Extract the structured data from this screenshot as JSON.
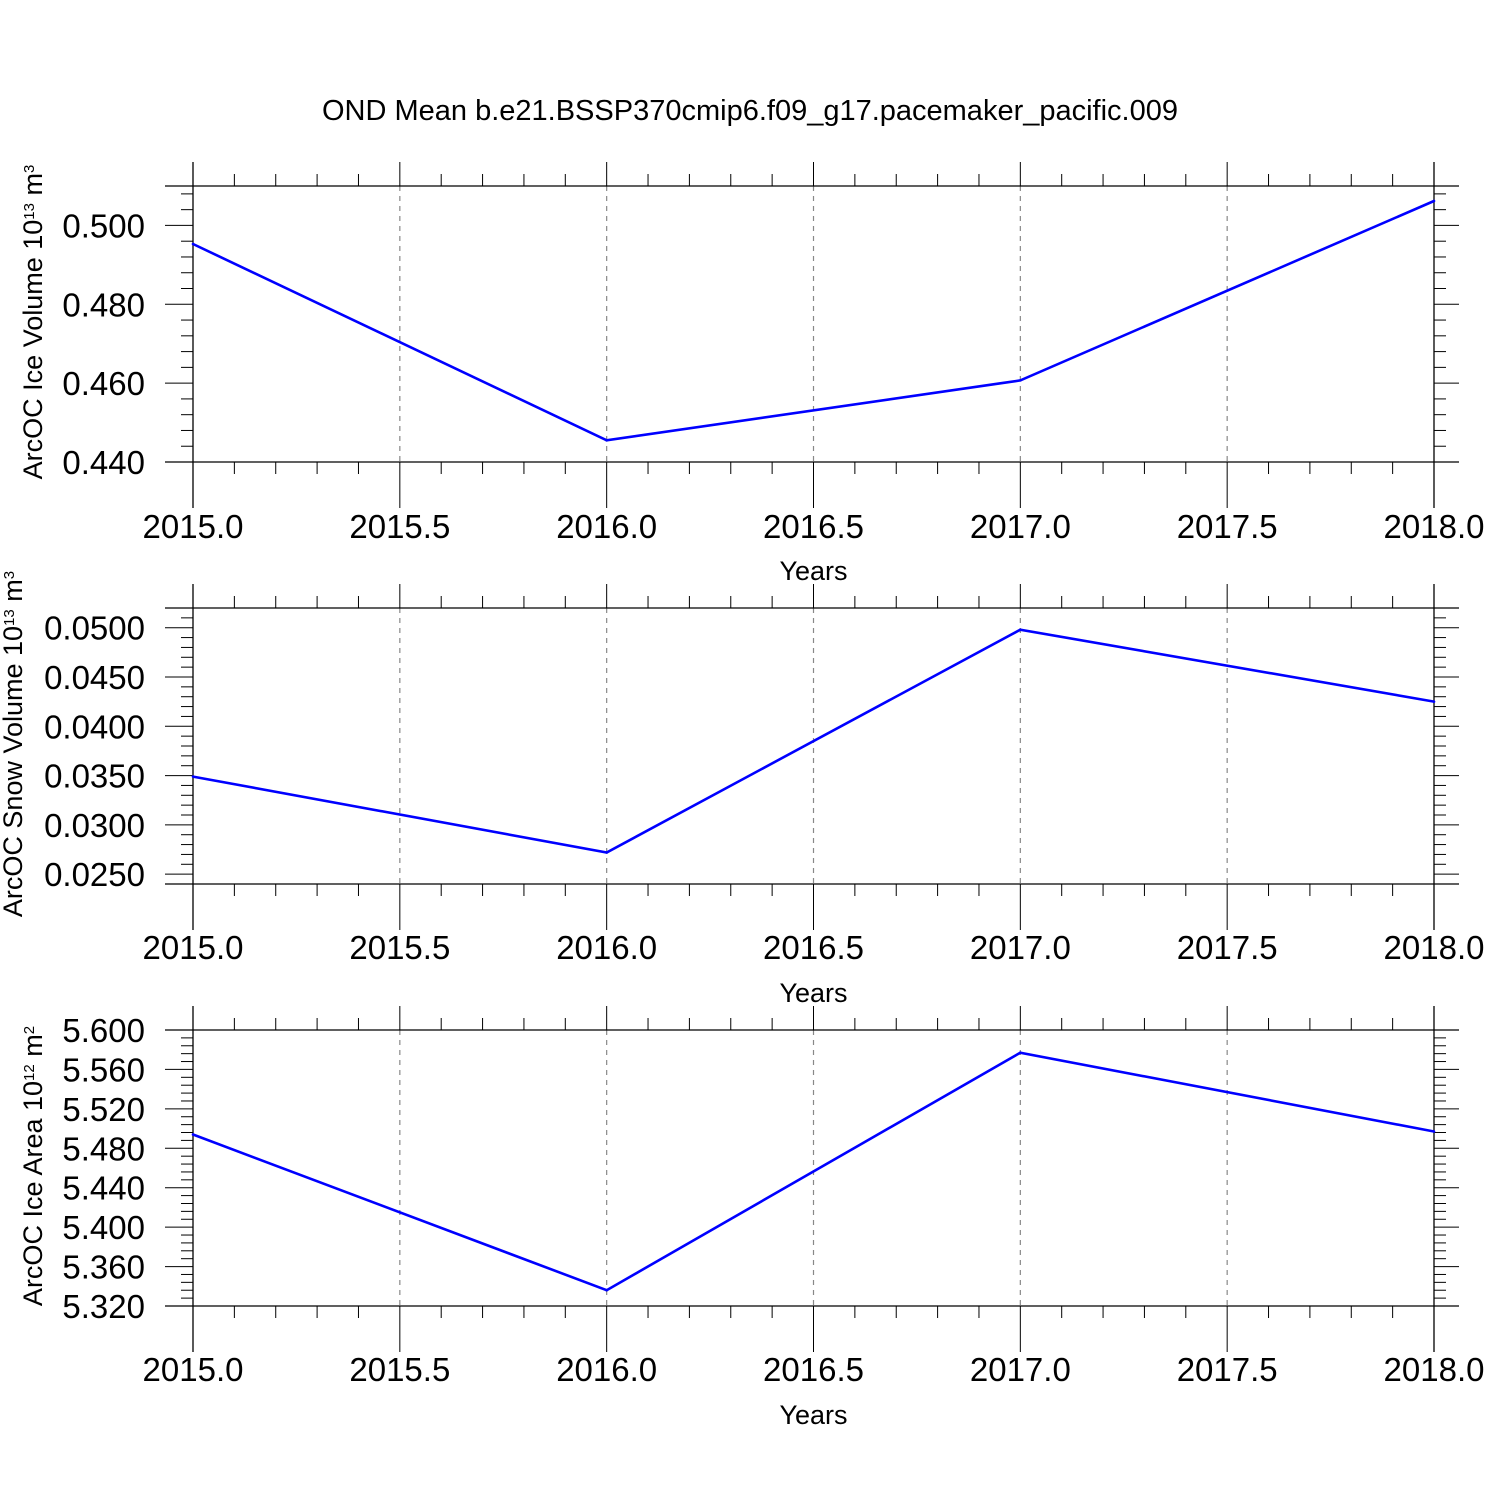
{
  "figure": {
    "title": "OND Mean b.e21.BSSP370cmip6.f09_g17.pacemaker_pacific.009"
  },
  "chart_data": [
    {
      "type": "line",
      "x": [
        2015.0,
        2016.0,
        2017.0,
        2018.0
      ],
      "series": [
        {
          "values": [
            0.4953,
            0.4455,
            0.4607,
            0.5062
          ],
          "color": "#0000ff"
        }
      ],
      "xlabel": "Years",
      "ylabel": {
        "text": "ArcOC Ice Volume 10",
        "exponent": "13",
        "unit": "m",
        "unit_exponent": "3"
      },
      "xlim": [
        2015.0,
        2018.0
      ],
      "ylim": [
        0.44,
        0.51
      ],
      "x_ticks": [
        "2015.0",
        "2015.5",
        "2016.0",
        "2016.5",
        "2017.0",
        "2017.5",
        "2018.0"
      ],
      "y_ticks": [
        "0.440",
        "0.460",
        "0.480",
        "0.500"
      ],
      "grid": "vertical dashed at labeled x ticks"
    },
    {
      "type": "line",
      "x": [
        2015.0,
        2016.0,
        2017.0,
        2018.0
      ],
      "series": [
        {
          "values": [
            0.0349,
            0.0272,
            0.0498,
            0.0425
          ],
          "color": "#0000ff"
        }
      ],
      "xlabel": "Years",
      "ylabel": {
        "text": "ArcOC Snow Volume 10",
        "exponent": "13",
        "unit": "m",
        "unit_exponent": "3"
      },
      "xlim": [
        2015.0,
        2018.0
      ],
      "ylim": [
        0.024,
        0.052
      ],
      "x_ticks": [
        "2015.0",
        "2015.5",
        "2016.0",
        "2016.5",
        "2017.0",
        "2017.5",
        "2018.0"
      ],
      "y_ticks": [
        "0.0250",
        "0.0300",
        "0.0350",
        "0.0400",
        "0.0450",
        "0.0500"
      ],
      "grid": "vertical dashed at labeled x ticks"
    },
    {
      "type": "line",
      "x": [
        2015.0,
        2016.0,
        2017.0,
        2018.0
      ],
      "series": [
        {
          "values": [
            5.494,
            5.336,
            5.577,
            5.497
          ],
          "color": "#0000ff"
        }
      ],
      "xlabel": "Years",
      "ylabel": {
        "text": "ArcOC Ice Area 10",
        "exponent": "12",
        "unit": "m",
        "unit_exponent": "2"
      },
      "xlim": [
        2015.0,
        2018.0
      ],
      "ylim": [
        5.32,
        5.6
      ],
      "x_ticks": [
        "2015.0",
        "2015.5",
        "2016.0",
        "2016.5",
        "2017.0",
        "2017.5",
        "2018.0"
      ],
      "y_ticks": [
        "5.320",
        "5.360",
        "5.400",
        "5.440",
        "5.480",
        "5.520",
        "5.560",
        "5.600"
      ],
      "grid": "vertical dashed at labeled x ticks"
    }
  ]
}
